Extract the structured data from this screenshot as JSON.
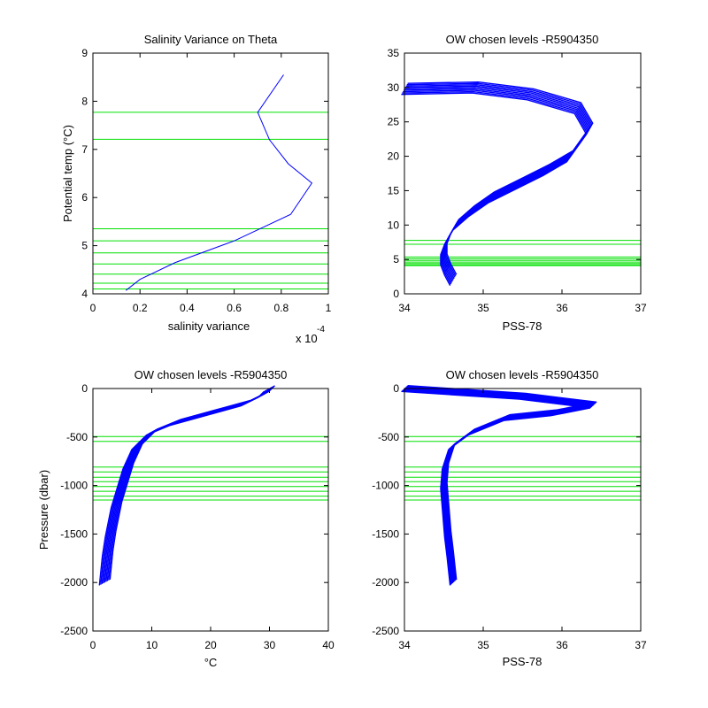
{
  "colors": {
    "profile": "#0000ff",
    "levels": "#00e000",
    "axes": "#000000",
    "background": "#ffffff"
  },
  "chart_data": [
    {
      "id": "p1",
      "type": "line",
      "title": "Salinity Variance on Theta",
      "xlabel": "salinity variance",
      "ylabel": "Potential temp (°C)",
      "x_multiplier": "x 10",
      "x_multiplier_exp": "-4",
      "xlim": [
        0,
        1
      ],
      "ylim": [
        4,
        9
      ],
      "xticks": [
        0,
        0.2,
        0.4,
        0.6,
        0.8,
        1
      ],
      "xtick_labels": [
        "0",
        "0.2",
        "0.4",
        "0.6",
        "0.8",
        "1"
      ],
      "yticks": [
        4,
        5,
        6,
        7,
        8,
        9
      ],
      "ytick_labels": [
        "4",
        "5",
        "6",
        "7",
        "8",
        "9"
      ],
      "series": [
        {
          "x": [
            0.81,
            0.7,
            0.75,
            0.83,
            0.93,
            0.84,
            0.6,
            0.35,
            0.2,
            0.14
          ],
          "y": [
            8.55,
            7.77,
            7.2,
            6.7,
            6.3,
            5.65,
            5.1,
            4.65,
            4.3,
            4.07
          ]
        }
      ],
      "hlines": [
        7.77,
        7.21,
        5.35,
        5.1,
        4.85,
        4.62,
        4.41,
        4.22,
        4.1
      ]
    },
    {
      "id": "p2",
      "type": "line",
      "title": "OW chosen levels -R5904350",
      "xlabel": "PSS-78",
      "ylabel": "",
      "xlim": [
        34,
        37
      ],
      "ylim": [
        0,
        35
      ],
      "xticks": [
        34,
        35,
        36,
        37
      ],
      "xtick_labels": [
        "34",
        "35",
        "36",
        "37"
      ],
      "yticks": [
        0,
        5,
        10,
        15,
        20,
        25,
        30,
        35
      ],
      "ytick_labels": [
        "0",
        "5",
        "10",
        "15",
        "20",
        "25",
        "30",
        "35"
      ],
      "series": [
        {
          "x": [
            34.62,
            34.55,
            34.5,
            34.5,
            34.55,
            34.65,
            34.85,
            35.1,
            35.45,
            35.8,
            36.1,
            36.35,
            36.2,
            35.6,
            34.9,
            34.0
          ],
          "y": [
            2.0,
            3.5,
            5.0,
            6.5,
            8.0,
            10.0,
            12.0,
            14.0,
            16.0,
            18.0,
            20.0,
            24.0,
            27.0,
            29.0,
            30.0,
            29.8
          ]
        }
      ],
      "band": {
        "x_offsets": [
          -0.04,
          0.04
        ],
        "y_offsets": [
          -0.8,
          0.8
        ]
      },
      "hlines": [
        7.77,
        7.21,
        5.35,
        5.1,
        4.85,
        4.62,
        4.41,
        4.22,
        4.1
      ]
    },
    {
      "id": "p3",
      "type": "line",
      "title": "OW chosen levels -R5904350",
      "xlabel": "°C",
      "ylabel": "Pressure (dbar)",
      "xlim": [
        0,
        40
      ],
      "ylim": [
        -2500,
        0
      ],
      "xticks": [
        0,
        10,
        20,
        30,
        40
      ],
      "xtick_labels": [
        "0",
        "10",
        "20",
        "30",
        "40"
      ],
      "yticks": [
        0,
        -500,
        -1000,
        -1500,
        -2000,
        -2500
      ],
      "ytick_labels": [
        "0",
        "-500",
        "-1000",
        "-1500",
        "-2000",
        "-2500"
      ],
      "series": [
        {
          "x": [
            2.0,
            2.5,
            3.0,
            4.0,
            5.0,
            6.0,
            7.5,
            10.0,
            14.0,
            20.0,
            26.0,
            29.0,
            30.0
          ],
          "y": [
            -2000,
            -1700,
            -1500,
            -1200,
            -1000,
            -800,
            -600,
            -450,
            -350,
            -250,
            -150,
            -60,
            0
          ]
        }
      ],
      "band": {
        "x_offsets": [
          -0.9,
          0.9
        ],
        "y_offsets": [
          -30,
          30
        ]
      },
      "hlines": [
        -495,
        -545,
        -810,
        -860,
        -915,
        -960,
        -1010,
        -1060,
        -1110,
        -1150
      ]
    },
    {
      "id": "p4",
      "type": "line",
      "title": "OW chosen levels -R5904350",
      "xlabel": "PSS-78",
      "ylabel": "",
      "xlim": [
        34,
        37
      ],
      "ylim": [
        -2500,
        0
      ],
      "xticks": [
        34,
        35,
        36,
        37
      ],
      "xtick_labels": [
        "34",
        "35",
        "36",
        "37"
      ],
      "yticks": [
        0,
        -500,
        -1000,
        -1500,
        -2000,
        -2500
      ],
      "ytick_labels": [
        "0",
        "-500",
        "-1000",
        "-1500",
        "-2000",
        "-2500"
      ],
      "series": [
        {
          "x": [
            34.62,
            34.58,
            34.55,
            34.52,
            34.5,
            34.52,
            34.6,
            34.85,
            35.3,
            35.9,
            36.4,
            35.5,
            34.0
          ],
          "y": [
            -2000,
            -1700,
            -1500,
            -1200,
            -1000,
            -800,
            -600,
            -450,
            -300,
            -250,
            -170,
            -80,
            0
          ]
        }
      ],
      "band": {
        "x_offsets": [
          -0.04,
          0.04
        ],
        "y_offsets": [
          -30,
          30
        ]
      },
      "hlines": [
        -495,
        -545,
        -810,
        -860,
        -915,
        -960,
        -1010,
        -1060,
        -1110,
        -1150
      ]
    }
  ]
}
